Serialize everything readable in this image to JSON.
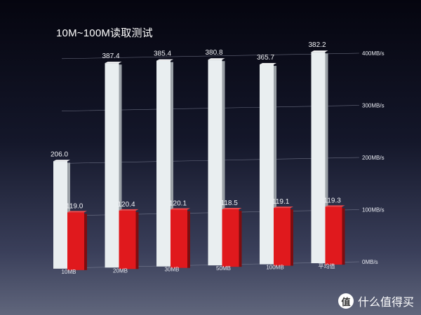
{
  "title": "10M~100M读取测试",
  "watermark": {
    "badge": "值",
    "text": "什么值得买"
  },
  "chart_data": {
    "type": "bar",
    "title": "10M~100M读取测试",
    "categories": [
      "10MB",
      "20MB",
      "30MB",
      "50MB",
      "100MB",
      "平均值"
    ],
    "series": [
      {
        "values": [
          206.0,
          387.4,
          385.4,
          380.8,
          365.7,
          382.2
        ],
        "labels": [
          "206.0",
          "387.4",
          "385.4",
          "380.8",
          "365.7",
          "382.2"
        ],
        "color": "#e9eef0"
      },
      {
        "values": [
          119.0,
          120.4,
          120.1,
          118.5,
          119.1,
          119.3
        ],
        "labels": [
          "119.0",
          "120.4",
          "120.1",
          "118.5",
          "119.1",
          "119.3"
        ],
        "color": "#e0191d"
      }
    ],
    "y_ticks": [
      {
        "value": 0,
        "label": "0MB/s"
      },
      {
        "value": 100,
        "label": "100MB/s"
      },
      {
        "value": 200,
        "label": "200MB/s"
      },
      {
        "value": 300,
        "label": "300MB/s"
      },
      {
        "value": 400,
        "label": "400MB/s"
      }
    ],
    "ylim": [
      0,
      400
    ],
    "grid": true,
    "axis_position": "right"
  }
}
